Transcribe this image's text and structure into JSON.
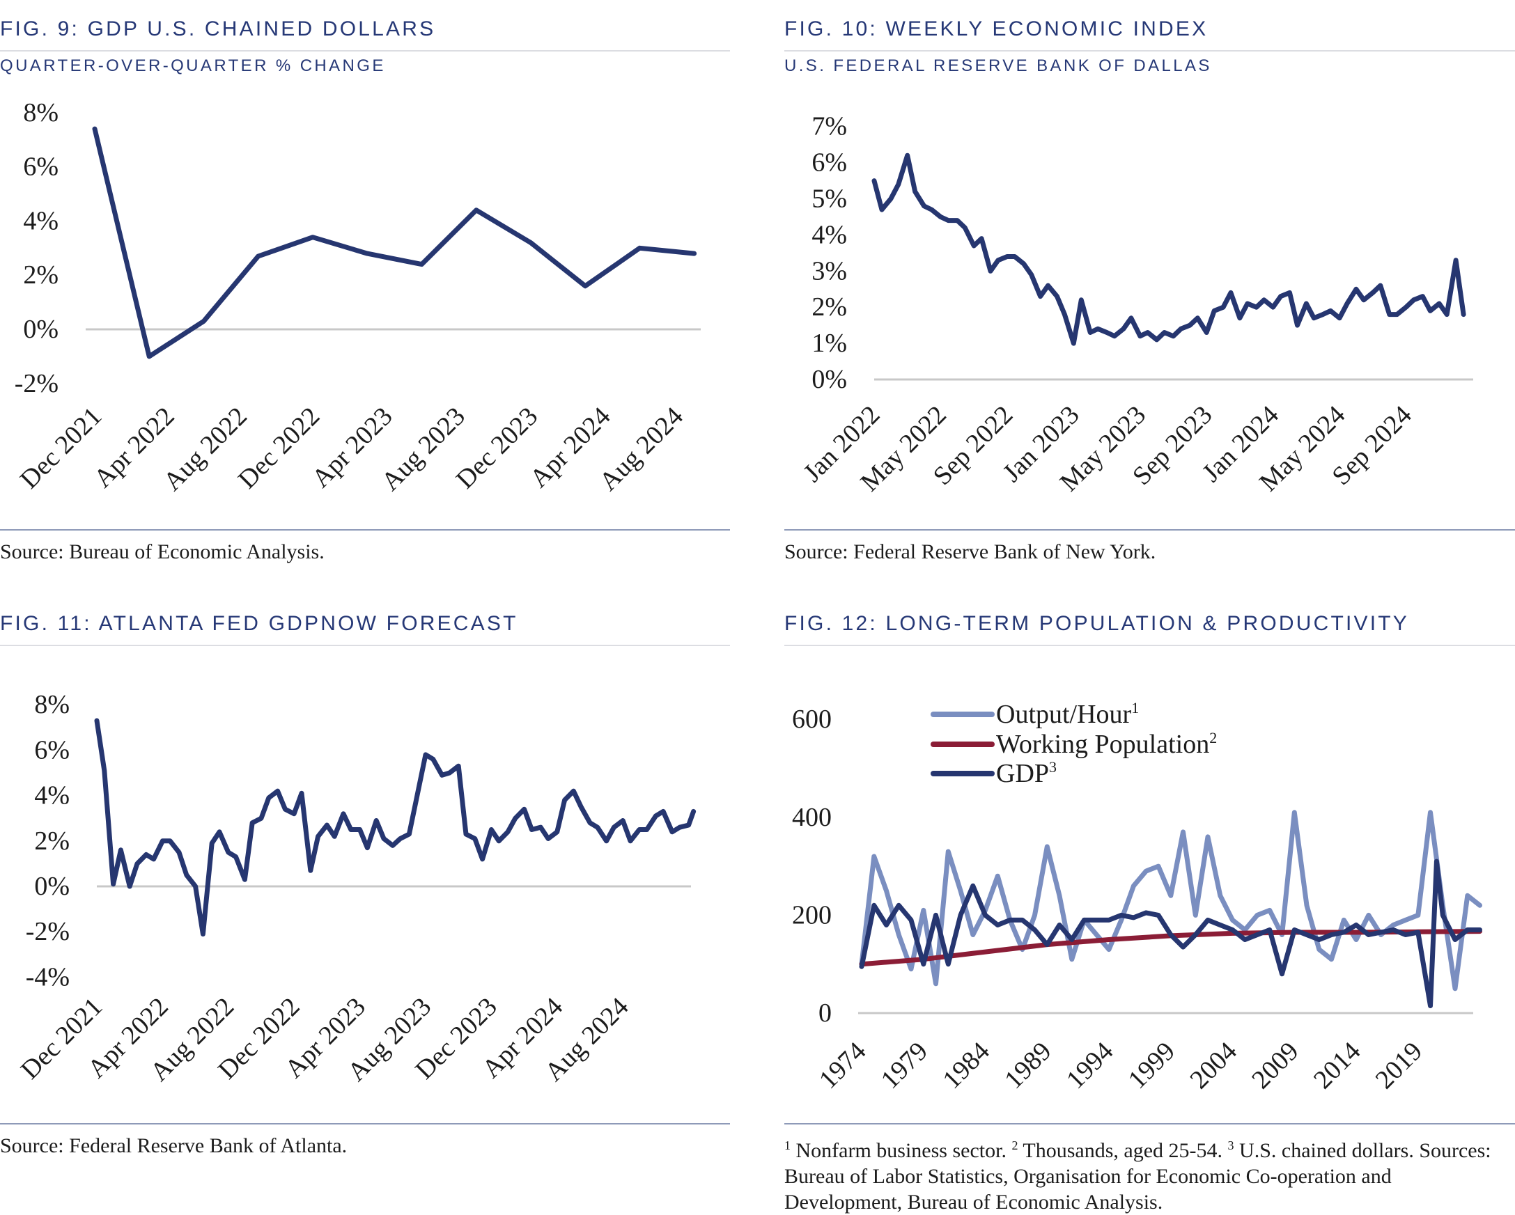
{
  "fig9": {
    "title": "FIG. 9: GDP U.S. CHAINED DOLLARS",
    "subtitle": "QUARTER-OVER-QUARTER % CHANGE",
    "source": "Source: Bureau of Economic Analysis."
  },
  "fig10": {
    "title": "FIG. 10: WEEKLY ECONOMIC INDEX",
    "subtitle": "U.S. FEDERAL RESERVE BANK OF DALLAS",
    "source": "Source: Federal Reserve Bank of New York."
  },
  "fig11": {
    "title": "FIG. 11: ATLANTA FED GDPNOW FORECAST",
    "source": "Source: Federal Reserve Bank of Atlanta."
  },
  "fig12": {
    "title": "FIG. 12: LONG-TERM POPULATION & PRODUCTIVITY",
    "footnote": {
      "n1": "1",
      "t1": " Nonfarm business sector. ",
      "n2": "2",
      "t2": " Thousands, aged 25-54. ",
      "n3": "3",
      "t3": " U.S. chained dollars. Sources: Bureau of Labor Statistics, Organisation for Economic Co-operation and Development, Bureau of Economic Analysis."
    }
  },
  "chart_data": [
    {
      "id": "fig9",
      "type": "line",
      "grid": false,
      "ylim": [
        -2,
        8
      ],
      "yticks": [
        "8%",
        "6%",
        "4%",
        "2%",
        "0%",
        "-2%"
      ],
      "ytick_values": [
        8,
        6,
        4,
        2,
        0,
        -2
      ],
      "xticks": [
        {
          "label": "Dec 2021",
          "date": "2021-12"
        },
        {
          "label": "Apr 2022",
          "date": "2022-04"
        },
        {
          "label": "Aug 2022",
          "date": "2022-08"
        },
        {
          "label": "Dec 2022",
          "date": "2022-12"
        },
        {
          "label": "Apr 2023",
          "date": "2023-04"
        },
        {
          "label": "Aug 2023",
          "date": "2023-08"
        },
        {
          "label": "Dec 2023",
          "date": "2023-12"
        },
        {
          "label": "Apr 2024",
          "date": "2024-04"
        },
        {
          "label": "Aug 2024",
          "date": "2024-08"
        }
      ],
      "series": [
        {
          "color": "#263670",
          "x": [
            "2021-12",
            "2022-03",
            "2022-06",
            "2022-09",
            "2022-12",
            "2023-03",
            "2023-06",
            "2023-09",
            "2023-12",
            "2024-03",
            "2024-06",
            "2024-09"
          ],
          "values": [
            7.4,
            -1.0,
            0.3,
            2.7,
            3.4,
            2.8,
            2.4,
            4.4,
            3.2,
            1.6,
            3.0,
            2.8
          ]
        }
      ]
    },
    {
      "id": "fig10",
      "type": "line",
      "grid": false,
      "ylim": [
        0,
        7
      ],
      "yticks": [
        "7%",
        "6%",
        "5%",
        "4%",
        "3%",
        "2%",
        "1%",
        "0%"
      ],
      "ytick_values": [
        7,
        6,
        5,
        4,
        3,
        2,
        1,
        0
      ],
      "xticks": [
        {
          "label": "Jan 2022",
          "date": "2022-01"
        },
        {
          "label": "May 2022",
          "date": "2022-05"
        },
        {
          "label": "Sep 2022",
          "date": "2022-09"
        },
        {
          "label": "Jan 2023",
          "date": "2023-01"
        },
        {
          "label": "May 2023",
          "date": "2023-05"
        },
        {
          "label": "Sep 2023",
          "date": "2023-09"
        },
        {
          "label": "Jan 2024",
          "date": "2024-01"
        },
        {
          "label": "May 2024",
          "date": "2024-05"
        },
        {
          "label": "Sep 2024",
          "date": "2024-09"
        }
      ],
      "series": [
        {
          "color": "#263670",
          "x": [
            "2022-01-01",
            "2022-01-15",
            "2022-02-01",
            "2022-02-15",
            "2022-03-01",
            "2022-03-15",
            "2022-04-01",
            "2022-04-15",
            "2022-05-01",
            "2022-05-15",
            "2022-06-01",
            "2022-06-15",
            "2022-07-01",
            "2022-07-15",
            "2022-08-01",
            "2022-08-15",
            "2022-09-01",
            "2022-09-15",
            "2022-10-01",
            "2022-10-15",
            "2022-11-01",
            "2022-11-15",
            "2022-12-01",
            "2022-12-15",
            "2023-01-01",
            "2023-01-15",
            "2023-02-01",
            "2023-02-15",
            "2023-03-01",
            "2023-03-15",
            "2023-04-01",
            "2023-04-15",
            "2023-05-01",
            "2023-05-15",
            "2023-06-01",
            "2023-06-15",
            "2023-07-01",
            "2023-07-15",
            "2023-08-01",
            "2023-08-15",
            "2023-09-01",
            "2023-09-15",
            "2023-10-01",
            "2023-10-15",
            "2023-11-01",
            "2023-11-15",
            "2023-12-01",
            "2023-12-15",
            "2024-01-01",
            "2024-01-15",
            "2024-02-01",
            "2024-02-15",
            "2024-03-01",
            "2024-03-15",
            "2024-04-01",
            "2024-04-15",
            "2024-05-01",
            "2024-05-15",
            "2024-06-01",
            "2024-06-15",
            "2024-07-01",
            "2024-07-15",
            "2024-08-01",
            "2024-08-15",
            "2024-09-01",
            "2024-09-15",
            "2024-10-01",
            "2024-10-15",
            "2024-11-01",
            "2024-11-15",
            "2024-12-01",
            "2024-12-15"
          ],
          "values": [
            5.5,
            4.7,
            5.0,
            5.4,
            6.2,
            5.2,
            4.8,
            4.7,
            4.5,
            4.4,
            4.4,
            4.2,
            3.7,
            3.9,
            3.0,
            3.3,
            3.4,
            3.4,
            3.2,
            2.9,
            2.3,
            2.6,
            2.3,
            1.8,
            1.0,
            2.2,
            1.3,
            1.4,
            1.3,
            1.2,
            1.4,
            1.7,
            1.2,
            1.3,
            1.1,
            1.3,
            1.2,
            1.4,
            1.5,
            1.7,
            1.3,
            1.9,
            2.0,
            2.4,
            1.7,
            2.1,
            2.0,
            2.2,
            2.0,
            2.3,
            2.4,
            1.5,
            2.1,
            1.7,
            1.8,
            1.9,
            1.7,
            2.1,
            2.5,
            2.2,
            2.4,
            2.6,
            1.8,
            1.8,
            2.0,
            2.2,
            2.3,
            1.9,
            2.1,
            1.8,
            3.3,
            1.8
          ]
        }
      ]
    },
    {
      "id": "fig11",
      "type": "line",
      "grid": false,
      "ylim": [
        -4,
        8
      ],
      "yticks": [
        "8%",
        "6%",
        "4%",
        "2%",
        "0%",
        "-2%",
        "-4%"
      ],
      "ytick_values": [
        8,
        6,
        4,
        2,
        0,
        -2,
        -4
      ],
      "xticks": [
        {
          "label": "Dec 2021",
          "date": "2021-12"
        },
        {
          "label": "Apr 2022",
          "date": "2022-04"
        },
        {
          "label": "Aug 2022",
          "date": "2022-08"
        },
        {
          "label": "Dec 2022",
          "date": "2022-12"
        },
        {
          "label": "Apr 2023",
          "date": "2023-04"
        },
        {
          "label": "Aug 2023",
          "date": "2023-08"
        },
        {
          "label": "Dec 2023",
          "date": "2023-12"
        },
        {
          "label": "Apr 2024",
          "date": "2024-04"
        },
        {
          "label": "Aug 2024",
          "date": "2024-08"
        }
      ],
      "series": [
        {
          "color": "#263670",
          "x": [
            "2021-12-01",
            "2021-12-15",
            "2022-01-01",
            "2022-01-15",
            "2022-02-01",
            "2022-02-15",
            "2022-03-01",
            "2022-03-15",
            "2022-04-01",
            "2022-04-15",
            "2022-05-01",
            "2022-05-15",
            "2022-06-01",
            "2022-06-15",
            "2022-07-01",
            "2022-07-15",
            "2022-08-01",
            "2022-08-15",
            "2022-09-01",
            "2022-09-15",
            "2022-10-01",
            "2022-10-15",
            "2022-11-01",
            "2022-11-15",
            "2022-12-01",
            "2022-12-15",
            "2023-01-01",
            "2023-01-15",
            "2023-02-01",
            "2023-02-15",
            "2023-03-01",
            "2023-03-15",
            "2023-04-01",
            "2023-04-15",
            "2023-05-01",
            "2023-05-15",
            "2023-06-01",
            "2023-06-15",
            "2023-07-01",
            "2023-07-15",
            "2023-08-01",
            "2023-08-15",
            "2023-09-01",
            "2023-09-15",
            "2023-10-01",
            "2023-10-15",
            "2023-11-01",
            "2023-11-15",
            "2023-12-01",
            "2023-12-15",
            "2024-01-01",
            "2024-01-15",
            "2024-02-01",
            "2024-02-15",
            "2024-03-01",
            "2024-03-15",
            "2024-04-01",
            "2024-04-15",
            "2024-05-01",
            "2024-05-15",
            "2024-06-01",
            "2024-06-15",
            "2024-07-01",
            "2024-07-15",
            "2024-08-01",
            "2024-08-15",
            "2024-09-01",
            "2024-09-15",
            "2024-10-01",
            "2024-10-15",
            "2024-11-01",
            "2024-11-15",
            "2024-12-01",
            "2024-12-10"
          ],
          "values": [
            7.3,
            5.1,
            0.1,
            1.6,
            0.0,
            1.0,
            1.4,
            1.2,
            2.0,
            2.0,
            1.5,
            0.5,
            0.0,
            -2.1,
            1.9,
            2.4,
            1.5,
            1.3,
            0.3,
            2.8,
            3.0,
            3.9,
            4.2,
            3.4,
            3.2,
            4.1,
            0.7,
            2.2,
            2.7,
            2.2,
            3.2,
            2.5,
            2.5,
            1.7,
            2.9,
            2.1,
            1.8,
            2.1,
            2.3,
            3.9,
            5.8,
            5.6,
            4.9,
            5.0,
            5.3,
            2.3,
            2.1,
            1.2,
            2.5,
            2.0,
            2.4,
            3.0,
            3.4,
            2.5,
            2.6,
            2.1,
            2.4,
            3.8,
            4.2,
            3.5,
            2.8,
            2.6,
            2.0,
            2.6,
            2.9,
            2.0,
            2.5,
            2.5,
            3.1,
            3.3,
            2.4,
            2.6,
            2.7,
            3.3
          ]
        }
      ]
    },
    {
      "id": "fig12",
      "type": "line",
      "grid": false,
      "legend": "top-left",
      "ylim": [
        0,
        600
      ],
      "yticks": [
        "600",
        "400",
        "200",
        "0"
      ],
      "ytick_values": [
        600,
        400,
        200,
        0
      ],
      "xticks": [
        {
          "label": "1974",
          "date": 1974
        },
        {
          "label": "1979",
          "date": 1979
        },
        {
          "label": "1984",
          "date": 1984
        },
        {
          "label": "1989",
          "date": 1989
        },
        {
          "label": "1994",
          "date": 1994
        },
        {
          "label": "1999",
          "date": 1999
        },
        {
          "label": "2004",
          "date": 2004
        },
        {
          "label": "2009",
          "date": 2009
        },
        {
          "label": "2014",
          "date": 2014
        },
        {
          "label": "2019",
          "date": 2019
        }
      ],
      "series": [
        {
          "name": "Output/Hour",
          "sup": "1",
          "color": "#7a8ec0",
          "x": [
            1974,
            1975,
            1976,
            1977,
            1978,
            1979,
            1980,
            1981,
            1982,
            1983,
            1984,
            1985,
            1986,
            1987,
            1988,
            1989,
            1990,
            1991,
            1992,
            1993,
            1994,
            1995,
            1996,
            1997,
            1998,
            1999,
            2000,
            2001,
            2002,
            2003,
            2004,
            2005,
            2006,
            2007,
            2008,
            2009,
            2010,
            2011,
            2012,
            2013,
            2014,
            2015,
            2016,
            2017,
            2018,
            2019,
            2020,
            2021,
            2022,
            2023,
            2024
          ],
          "values": [
            100,
            320,
            250,
            160,
            90,
            210,
            60,
            330,
            250,
            160,
            210,
            280,
            190,
            130,
            200,
            340,
            240,
            110,
            190,
            160,
            130,
            190,
            260,
            290,
            300,
            240,
            370,
            200,
            360,
            240,
            190,
            170,
            200,
            210,
            160,
            410,
            220,
            130,
            110,
            190,
            150,
            200,
            160,
            180,
            190,
            200,
            410,
            220,
            50,
            240,
            220
          ]
        },
        {
          "name": "Working Population",
          "sup": "2",
          "color": "#8b1d36",
          "x": [
            1974,
            1979,
            1984,
            1989,
            1994,
            1999,
            2004,
            2009,
            2014,
            2019,
            2024
          ],
          "values": [
            100,
            110,
            125,
            140,
            150,
            158,
            163,
            165,
            165,
            166,
            167
          ]
        },
        {
          "name": "GDP",
          "sup": "3",
          "color": "#263670",
          "x": [
            1974,
            1975,
            1976,
            1977,
            1978,
            1979,
            1980,
            1981,
            1982,
            1983,
            1984,
            1985,
            1986,
            1987,
            1988,
            1989,
            1990,
            1991,
            1992,
            1993,
            1994,
            1995,
            1996,
            1997,
            1998,
            1999,
            2000,
            2001,
            2002,
            2003,
            2004,
            2005,
            2006,
            2007,
            2008,
            2009,
            2010,
            2011,
            2012,
            2013,
            2014,
            2015,
            2016,
            2017,
            2018,
            2019,
            2020,
            2020.5,
            2021,
            2022,
            2023,
            2024
          ],
          "values": [
            95,
            220,
            180,
            220,
            190,
            100,
            200,
            100,
            200,
            260,
            200,
            180,
            190,
            190,
            170,
            140,
            180,
            150,
            190,
            190,
            190,
            200,
            195,
            205,
            200,
            160,
            135,
            160,
            190,
            180,
            170,
            150,
            160,
            170,
            80,
            170,
            160,
            150,
            160,
            165,
            180,
            160,
            165,
            170,
            160,
            165,
            15,
            310,
            200,
            150,
            170,
            170
          ]
        }
      ]
    }
  ]
}
